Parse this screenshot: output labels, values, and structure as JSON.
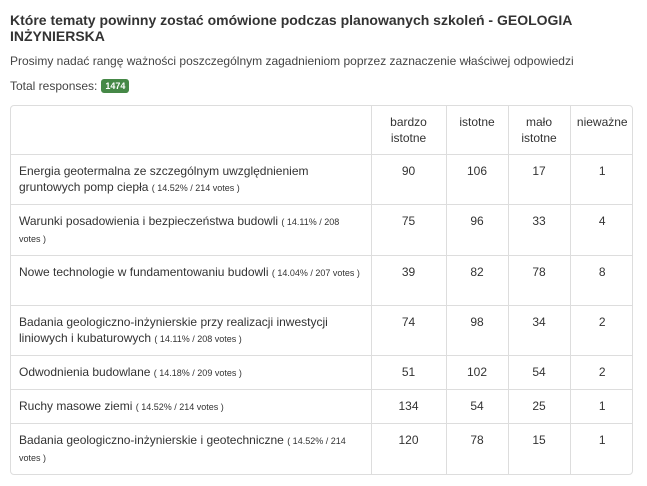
{
  "survey": {
    "title": "Które tematy powinny zostać omówione podczas planowanych szkoleń - GEOLOGIA INŻYNIERSKA",
    "subtitle": "Prosimy nadać rangę ważności poszczególnym zagadnieniom poprzez zaznaczenie właściwej odpowiedzi",
    "total_label": "Total responses:",
    "total_value": "1474"
  },
  "table": {
    "columns": [
      "bardzo istotne",
      "istotne",
      "mało istotne",
      "nieważne"
    ],
    "rows": [
      {
        "label": "Energia geotermalna ze szczególnym uwzględnieniem gruntowych pomp ciepła",
        "votes": "( 14.52% / 214 votes )",
        "values": [
          "90",
          "106",
          "17",
          "1"
        ]
      },
      {
        "label": "Warunki posadowienia i bezpieczeństwa budowli",
        "votes": "( 14.11% / 208 votes )",
        "values": [
          "75",
          "96",
          "33",
          "4"
        ]
      },
      {
        "label": "Nowe technologie w fundamentowaniu budowli",
        "votes": "( 14.04% / 207 votes )",
        "values": [
          "39",
          "82",
          "78",
          "8"
        ]
      },
      {
        "label": "Badania geologiczno-inżynierskie przy realizacji inwestycji liniowych i kubaturowych",
        "votes": "( 14.11% / 208 votes )",
        "values": [
          "74",
          "98",
          "34",
          "2"
        ]
      },
      {
        "label": "Odwodnienia budowlane",
        "votes": "( 14.18% / 209 votes )",
        "values": [
          "51",
          "102",
          "54",
          "2"
        ]
      },
      {
        "label": "Ruchy masowe ziemi",
        "votes": "( 14.52% / 214 votes )",
        "values": [
          "134",
          "54",
          "25",
          "1"
        ]
      },
      {
        "label": "Badania geologiczno-inżynierskie i geotechniczne",
        "votes": "( 14.52% / 214 votes )",
        "values": [
          "120",
          "78",
          "15",
          "1"
        ]
      }
    ]
  }
}
